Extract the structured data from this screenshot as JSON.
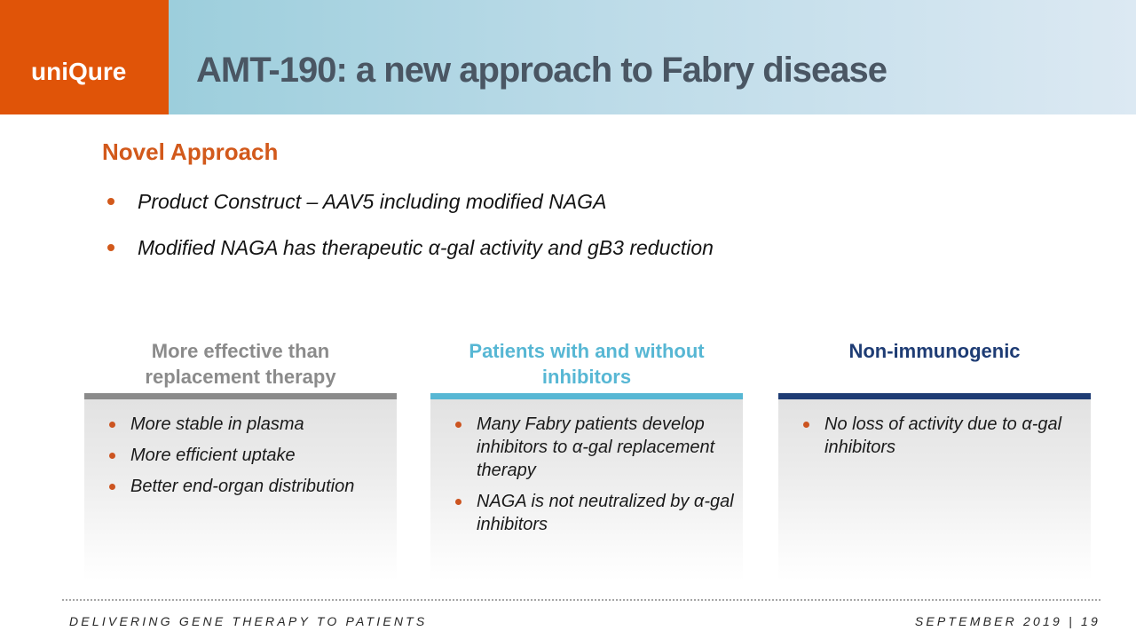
{
  "header": {
    "logo_text": "uniQure",
    "title": "AMT-190: a new approach to Fabry disease"
  },
  "intro": {
    "heading": "Novel Approach",
    "bullets": [
      "Product Construct – AAV5 including modified NAGA",
      "Modified NAGA has therapeutic α-gal activity and gB3 reduction"
    ]
  },
  "columns": [
    {
      "header_lines": [
        "More effective than",
        "replacement therapy"
      ],
      "accent": "#8b8b8b",
      "bullets": [
        "More stable in plasma",
        "More efficient uptake",
        "Better end-organ distribution"
      ]
    },
    {
      "header_lines": [
        "Patients with and without",
        "inhibitors"
      ],
      "accent": "#57b7d4",
      "bullets": [
        "Many Fabry patients develop inhibitors to α-gal replacement therapy",
        "NAGA is not neutralized by α-gal inhibitors"
      ]
    },
    {
      "header_lines": [
        "Non-immunogenic"
      ],
      "accent": "#1e3c74",
      "bullets": [
        "No loss of activity due to α-gal inhibitors"
      ]
    }
  ],
  "footer": {
    "left": "DELIVERING GENE THERAPY TO PATIENTS",
    "right": "SEPTEMBER 2019 | 19"
  },
  "colors": {
    "brand_orange": "#e05408",
    "heading_orange": "#d2591b",
    "bullet_dot_orange": "#cc5420",
    "title_text": "#4a5663",
    "header_gradient_left": "#9ccedc",
    "header_gradient_right": "#dce9f3",
    "column1_accent": "#8b8b8b",
    "column2_accent": "#57b7d4",
    "column3_accent": "#1e3c74",
    "body_text": "#1a1a1a"
  }
}
